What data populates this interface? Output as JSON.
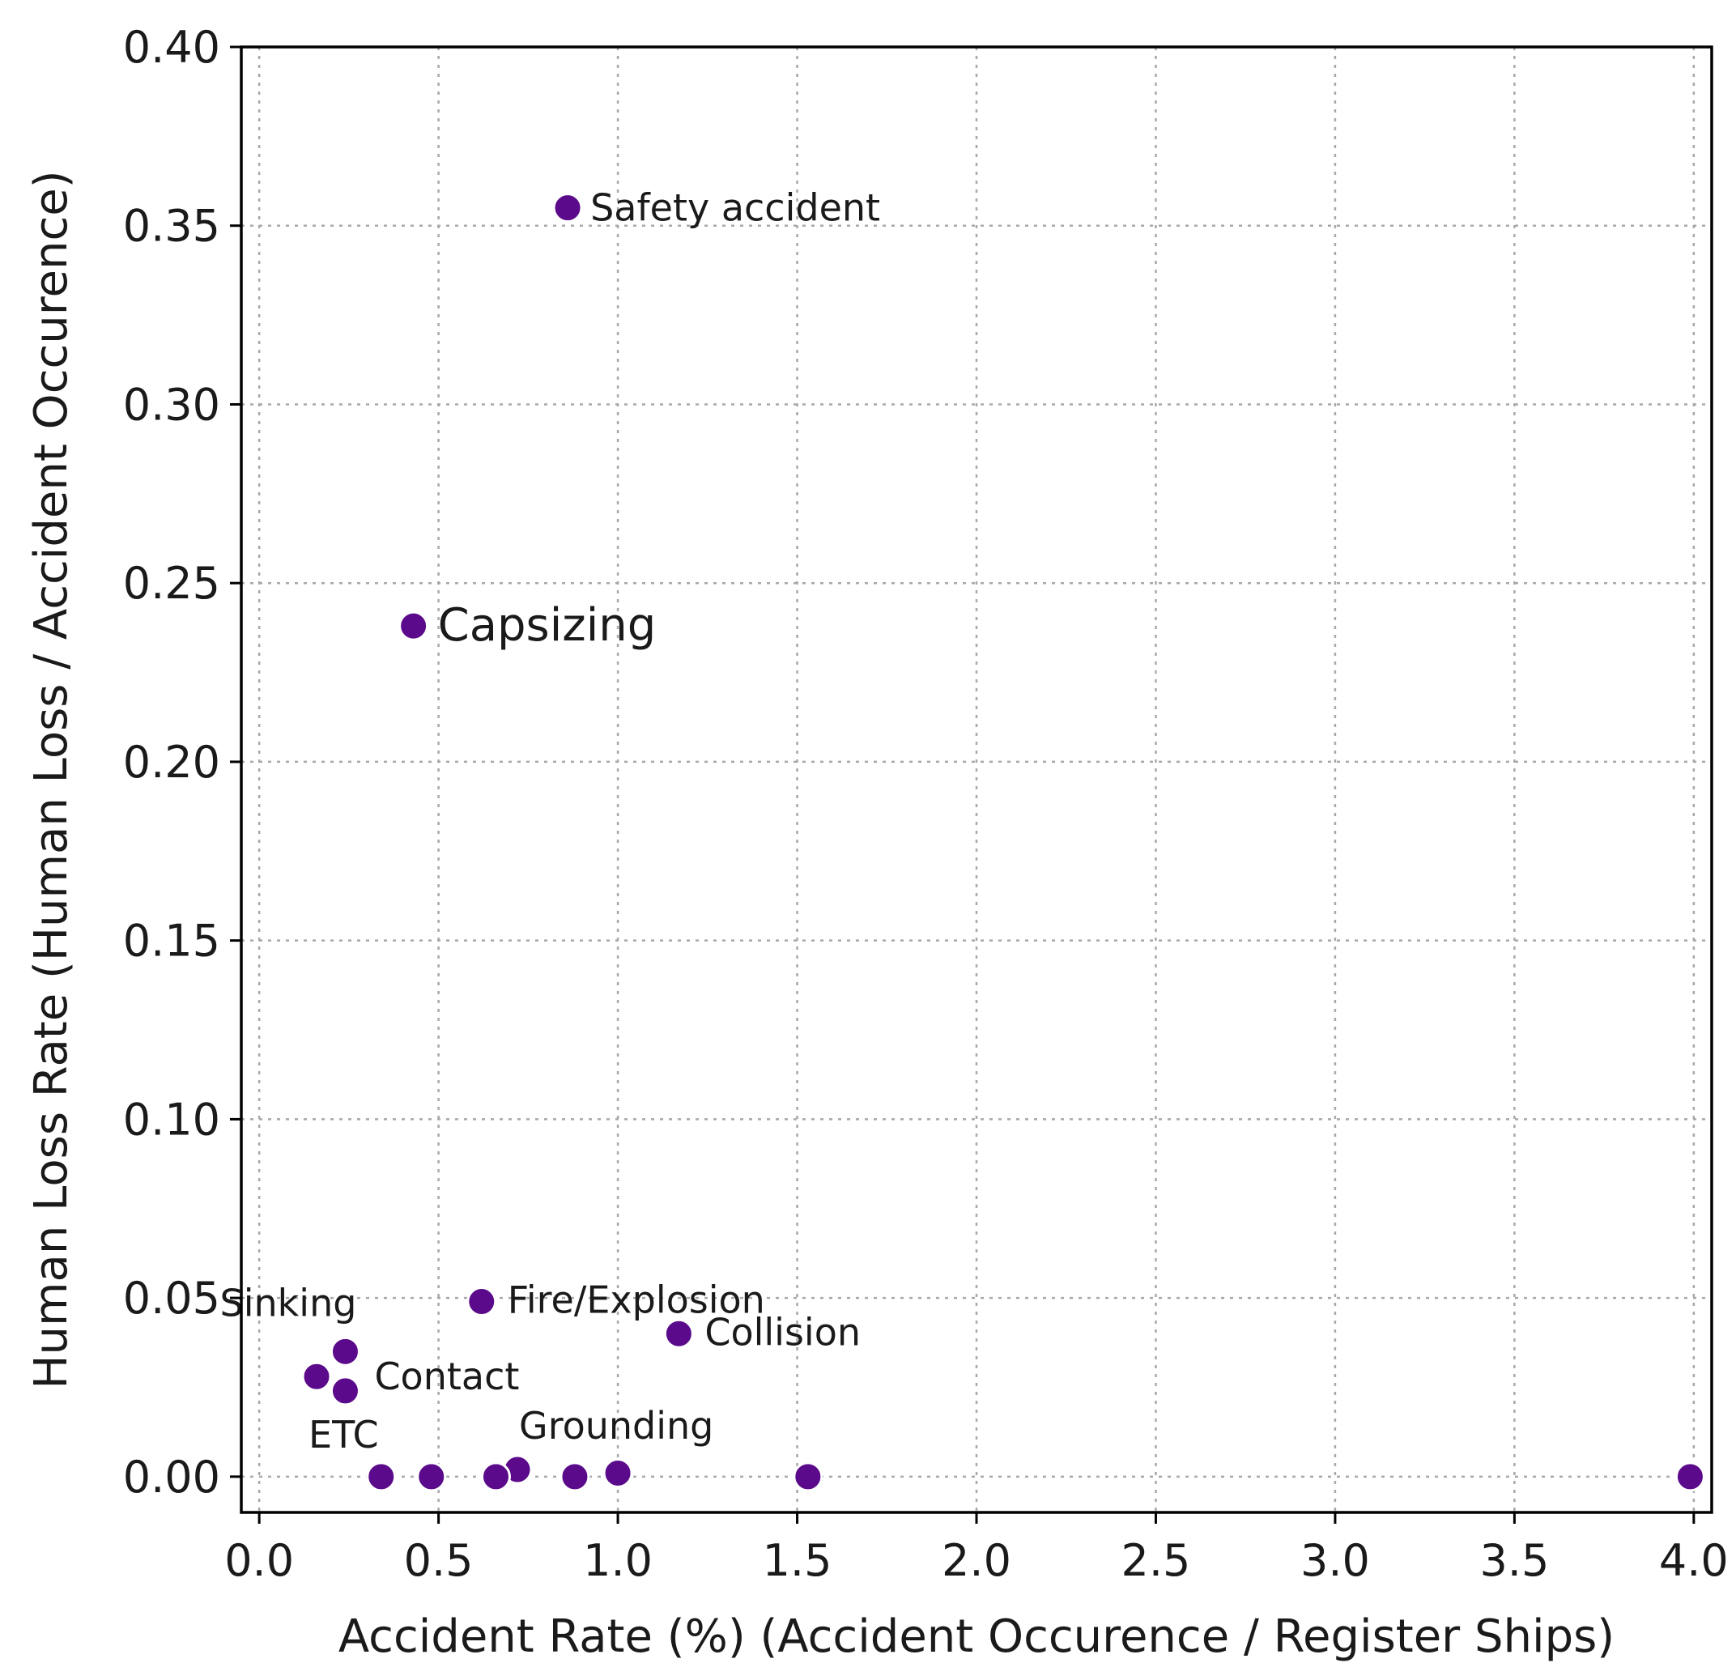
{
  "chart_data": {
    "type": "scatter",
    "xlabel": "Accident Rate (%) (Accident Occurence / Register Ships)",
    "ylabel": "Human Loss Rate (Human Loss / Accident Occurence)",
    "xlim": [
      -0.05,
      4.05
    ],
    "ylim": [
      -0.01,
      0.4
    ],
    "xticks": [
      0.0,
      0.5,
      1.0,
      1.5,
      2.0,
      2.5,
      3.0,
      3.5,
      4.0
    ],
    "xtick_labels": [
      "0.0",
      "0.5",
      "1.0",
      "1.5",
      "2.0",
      "2.5",
      "3.0",
      "3.5",
      "4.0"
    ],
    "yticks": [
      0.0,
      0.05,
      0.1,
      0.15,
      0.2,
      0.25,
      0.3,
      0.35,
      0.4
    ],
    "ytick_labels": [
      "0.00",
      "0.05",
      "0.10",
      "0.15",
      "0.20",
      "0.25",
      "0.30",
      "0.35",
      "0.40"
    ],
    "grid": true,
    "marker_color": "#5a0a8a",
    "points": [
      {
        "x": 0.86,
        "y": 0.355,
        "label": "Safety accident"
      },
      {
        "x": 0.43,
        "y": 0.238,
        "label": "Capsizing"
      },
      {
        "x": 0.62,
        "y": 0.049,
        "label": "Fire/Explosion"
      },
      {
        "x": 1.17,
        "y": 0.04,
        "label": "Collision"
      },
      {
        "x": 0.24,
        "y": 0.035,
        "label": "Sinking"
      },
      {
        "x": 0.24,
        "y": 0.024,
        "label": "Contact"
      },
      {
        "x": 0.16,
        "y": 0.028,
        "label": "ETC"
      },
      {
        "x": 0.72,
        "y": 0.002,
        "label": "Grounding"
      },
      {
        "x": 0.34,
        "y": 0.0,
        "label": ""
      },
      {
        "x": 0.48,
        "y": 0.0,
        "label": ""
      },
      {
        "x": 0.66,
        "y": 0.0,
        "label": ""
      },
      {
        "x": 0.88,
        "y": 0.0,
        "label": ""
      },
      {
        "x": 1.0,
        "y": 0.001,
        "label": ""
      },
      {
        "x": 1.53,
        "y": 0.0,
        "label": ""
      },
      {
        "x": 3.99,
        "y": 0.0,
        "label": ""
      }
    ]
  }
}
